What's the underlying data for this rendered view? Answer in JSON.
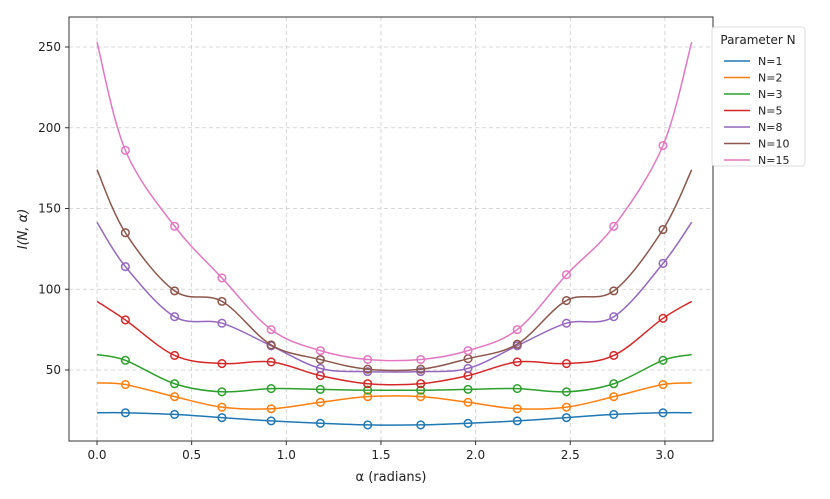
{
  "chart_data": {
    "type": "line",
    "title": "",
    "xlabel": "α (radians)",
    "ylabel": "I(N, α)",
    "xlim": [
      -0.15,
      3.29
    ],
    "ylim": [
      8,
      265
    ],
    "grid": true,
    "xticks": [
      0.0,
      0.5,
      1.0,
      1.5,
      2.0,
      2.5,
      3.0
    ],
    "xtick_labels": [
      "0.0",
      "0.5",
      "1.0",
      "1.5",
      "2.0",
      "2.5",
      "3.0"
    ],
    "yticks": [
      50,
      100,
      150,
      200,
      250
    ],
    "ytick_labels": [
      "50",
      "100",
      "150",
      "200",
      "250"
    ],
    "legend": {
      "title": "Parameter N",
      "placement": "outside-top-right"
    },
    "curve_x_range": [
      0,
      3.1416
    ],
    "marker_x": [
      0.15,
      0.41,
      0.66,
      0.92,
      1.18,
      1.43,
      1.71,
      1.96,
      2.22,
      2.48,
      2.73,
      2.99
    ],
    "series": [
      {
        "name": "N=1",
        "color": "#1f77b4",
        "end_value": 23.5,
        "markers": [
          23.5,
          22.5,
          20.5,
          18.5,
          17,
          16,
          16,
          17,
          18.5,
          20.5,
          22.5,
          23.5
        ]
      },
      {
        "name": "N=2",
        "color": "#ff7f0e",
        "end_value": 42,
        "markers": [
          41,
          33.5,
          27,
          26,
          30,
          33.5,
          33.5,
          30,
          26,
          27,
          33.5,
          41
        ]
      },
      {
        "name": "N=3",
        "color": "#2ca02c",
        "end_value": 59.5,
        "markers": [
          56,
          41.5,
          36.5,
          38.5,
          38,
          37.5,
          37.5,
          38,
          38.5,
          36.5,
          41.5,
          56
        ]
      },
      {
        "name": "N=5",
        "color": "#d62728",
        "end_value": 92.5,
        "markers": [
          81,
          59,
          54,
          55,
          46.5,
          41.5,
          41.5,
          46.5,
          55,
          54,
          59,
          82
        ]
      },
      {
        "name": "N=8",
        "color": "#9467bd",
        "end_value": 141.5,
        "markers": [
          114,
          83,
          79,
          65,
          51,
          49,
          49,
          51,
          65,
          79,
          83,
          116
        ]
      },
      {
        "name": "N=10",
        "color": "#8c564b",
        "end_value": 174,
        "markers": [
          135,
          99,
          92.5,
          65.5,
          56.5,
          50.5,
          50.5,
          57,
          66,
          93,
          99,
          137
        ]
      },
      {
        "name": "N=15",
        "color": "#e377c2",
        "end_value": 253,
        "markers": [
          186,
          139,
          107,
          75,
          62,
          56.5,
          56.5,
          62,
          75,
          109,
          139,
          189
        ]
      }
    ]
  }
}
